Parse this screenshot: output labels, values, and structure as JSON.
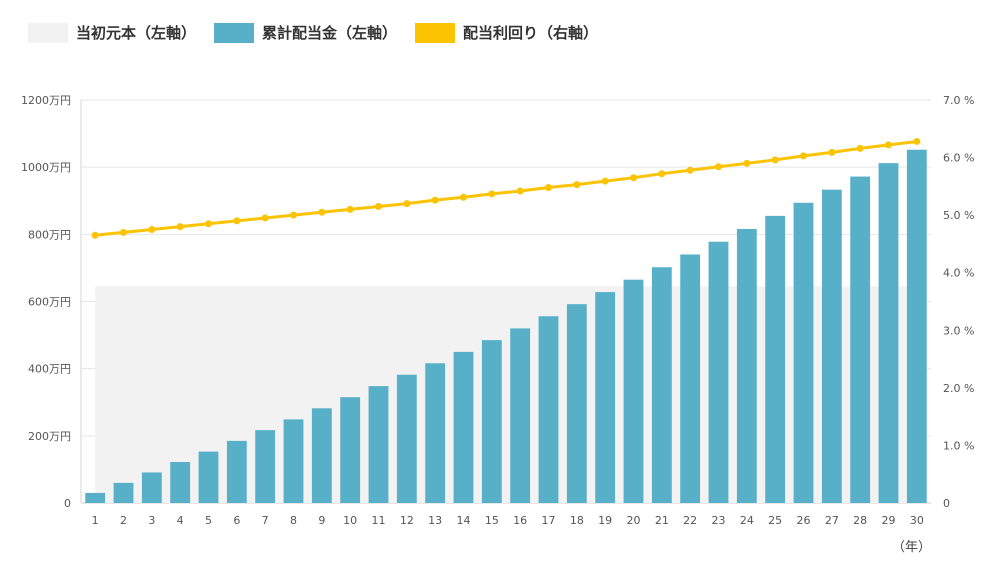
{
  "legend": [
    {
      "label": "当初元本（左軸）",
      "color": "#f2f2f2"
    },
    {
      "label": "累計配当金（左軸）",
      "color": "#58b0c8"
    },
    {
      "label": "配当利回り（右軸）",
      "color": "#fbc302"
    }
  ],
  "chart_data": {
    "type": "bar",
    "categories": [
      "1",
      "2",
      "3",
      "4",
      "5",
      "6",
      "7",
      "8",
      "9",
      "10",
      "11",
      "12",
      "13",
      "14",
      "15",
      "16",
      "17",
      "18",
      "19",
      "20",
      "21",
      "22",
      "23",
      "24",
      "25",
      "26",
      "27",
      "28",
      "29",
      "30"
    ],
    "x_unit_label": "（年）",
    "left_axis": {
      "min": 0,
      "max": 1200,
      "ticks": [
        0,
        200,
        400,
        600,
        800,
        1000,
        1200
      ],
      "tick_labels": [
        "0",
        "200万円",
        "400万円",
        "600万円",
        "800万円",
        "1000万円",
        "1200万円"
      ]
    },
    "right_axis": {
      "min": 0,
      "max": 7.0,
      "ticks": [
        0,
        1,
        2,
        3,
        4,
        5,
        6,
        7
      ],
      "tick_labels": [
        "0",
        "1.0 %",
        "2.0 %",
        "3.0 %",
        "4.0 %",
        "5.0 %",
        "6.0 %",
        "7.0 %"
      ]
    },
    "grid": true,
    "legend_position": "top-left",
    "series": [
      {
        "name": "当初元本（左軸）",
        "type": "area",
        "axis": "left",
        "color": "#f2f2f2",
        "values": [
          645,
          645,
          645,
          645,
          645,
          645,
          645,
          645,
          645,
          645,
          645,
          645,
          645,
          645,
          645,
          645,
          645,
          645,
          645,
          645,
          645,
          645,
          645,
          645,
          645,
          645,
          645,
          645,
          645,
          645
        ]
      },
      {
        "name": "累計配当金（左軸）",
        "type": "bar",
        "axis": "left",
        "color": "#58b0c8",
        "values": [
          30,
          60,
          91,
          122,
          153,
          185,
          217,
          249,
          282,
          315,
          348,
          382,
          416,
          450,
          485,
          520,
          556,
          592,
          628,
          665,
          702,
          740,
          778,
          816,
          855,
          894,
          933,
          972,
          1012,
          1052
        ]
      },
      {
        "name": "配当利回り（右軸）",
        "type": "line",
        "axis": "right",
        "color": "#fbc302",
        "values": [
          4.65,
          4.7,
          4.75,
          4.8,
          4.85,
          4.9,
          4.95,
          5.0,
          5.05,
          5.1,
          5.15,
          5.2,
          5.26,
          5.31,
          5.37,
          5.42,
          5.48,
          5.53,
          5.59,
          5.65,
          5.72,
          5.78,
          5.84,
          5.9,
          5.96,
          6.03,
          6.09,
          6.16,
          6.22,
          6.28
        ]
      }
    ]
  }
}
